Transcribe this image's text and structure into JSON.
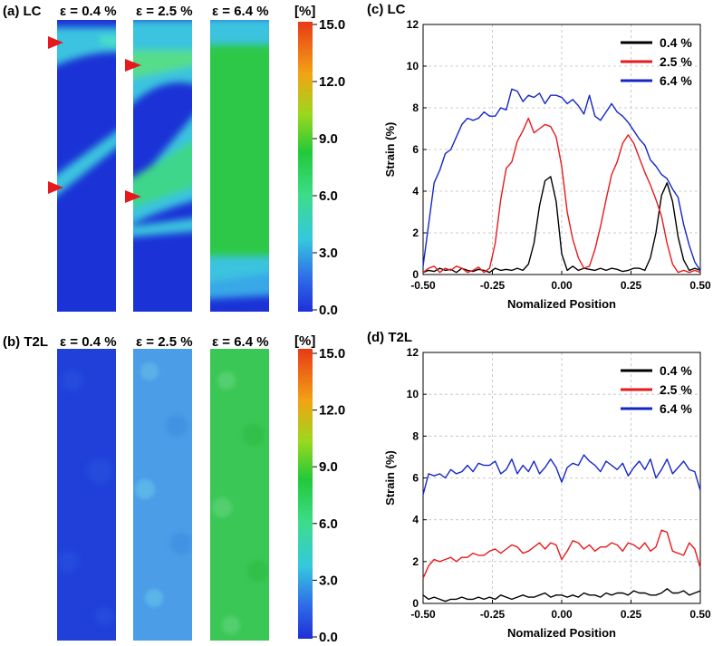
{
  "colors": {
    "strain_0_4": "#000000",
    "strain_2_5": "#e8191c",
    "strain_6_4": "#1526c9",
    "marker": "#e8191c",
    "grid": "#bdbdbd",
    "colorbar_stops": [
      "#1e2fd8",
      "#2f6fe8",
      "#35c8de",
      "#3ddc8a",
      "#22c93a",
      "#9ad81e",
      "#f2a314",
      "#e83a17"
    ]
  },
  "panels": {
    "a": {
      "label": "(a) LC",
      "strains": [
        "ε = 0.4 %",
        "ε = 2.5 %",
        "ε = 6.4 %"
      ]
    },
    "b": {
      "label": "(b) T2L",
      "strains": [
        "ε = 0.4 %",
        "ε = 2.5 %",
        "ε = 6.4 %"
      ]
    }
  },
  "colorbar": {
    "unit": "[%]",
    "ticks": [
      "15.0",
      "12.0",
      "9.0",
      "6.0",
      "3.0",
      "0.0"
    ],
    "range": [
      0,
      15
    ]
  },
  "chart_data": [
    {
      "id": "c",
      "type": "line",
      "title": "(c) LC",
      "xlabel": "Nomalized Position",
      "ylabel": "Strain (%)",
      "xlim": [
        -0.5,
        0.5
      ],
      "ylim": [
        0,
        12
      ],
      "xticks": [
        "-0.50",
        "-0.25",
        "0.00",
        "0.25",
        "0.50"
      ],
      "yticks": [
        "0",
        "2",
        "4",
        "6",
        "8",
        "10",
        "12"
      ],
      "grid": true,
      "legend_position": "top-right",
      "x": [
        -0.5,
        -0.48,
        -0.46,
        -0.44,
        -0.42,
        -0.4,
        -0.38,
        -0.36,
        -0.34,
        -0.32,
        -0.3,
        -0.28,
        -0.26,
        -0.24,
        -0.22,
        -0.2,
        -0.18,
        -0.16,
        -0.14,
        -0.12,
        -0.1,
        -0.08,
        -0.06,
        -0.04,
        -0.02,
        0,
        0.02,
        0.04,
        0.06,
        0.08,
        0.1,
        0.12,
        0.14,
        0.16,
        0.18,
        0.2,
        0.22,
        0.24,
        0.26,
        0.28,
        0.3,
        0.32,
        0.34,
        0.36,
        0.38,
        0.4,
        0.42,
        0.44,
        0.46,
        0.48,
        0.5
      ],
      "series": [
        {
          "name": "0.4 %",
          "values": [
            0.1,
            0.2,
            0.15,
            0.3,
            0.2,
            0.25,
            0.1,
            0.3,
            0.2,
            0.15,
            0.25,
            0.2,
            0.1,
            0.3,
            0.2,
            0.25,
            0.2,
            0.3,
            0.2,
            0.5,
            1.5,
            3.3,
            4.5,
            4.7,
            3.5,
            1.0,
            0.2,
            0.4,
            0.2,
            0.3,
            0.25,
            0.2,
            0.3,
            0.2,
            0.3,
            0.25,
            0.15,
            0.2,
            0.3,
            0.3,
            0.2,
            0.8,
            2.0,
            3.8,
            4.4,
            3.5,
            1.8,
            0.7,
            0.2,
            0.3,
            0.2
          ]
        },
        {
          "name": "2.5 %",
          "values": [
            0.1,
            0.3,
            0.4,
            0.1,
            0.3,
            0.2,
            0.4,
            0.3,
            0.1,
            0.2,
            0.35,
            0.1,
            0.3,
            1.5,
            3.6,
            5.1,
            5.4,
            6.4,
            6.9,
            7.5,
            6.8,
            7.0,
            7.2,
            7.1,
            6.6,
            5.2,
            3.0,
            1.7,
            0.8,
            0.3,
            0.4,
            1.2,
            2.3,
            3.6,
            4.8,
            5.4,
            6.3,
            6.7,
            6.3,
            5.6,
            4.9,
            4.3,
            3.6,
            2.8,
            1.5,
            0.5,
            0.1,
            0.2,
            0.1,
            0.2,
            0.1
          ]
        },
        {
          "name": "6.4 %",
          "values": [
            0.4,
            2.4,
            4.4,
            5.0,
            5.8,
            6.0,
            6.6,
            7.2,
            7.5,
            7.4,
            7.5,
            7.8,
            7.6,
            7.6,
            8.0,
            7.9,
            8.9,
            8.8,
            8.3,
            8.6,
            8.5,
            8.7,
            8.2,
            8.6,
            8.6,
            8.5,
            8.2,
            8.4,
            8.1,
            7.7,
            8.6,
            7.6,
            7.4,
            7.8,
            8.2,
            7.8,
            7.6,
            7.3,
            6.9,
            6.5,
            6.2,
            5.5,
            5.2,
            4.8,
            4.6,
            4.1,
            3.7,
            2.4,
            1.4,
            0.6,
            0.2
          ]
        }
      ]
    },
    {
      "id": "d",
      "type": "line",
      "title": "(d) T2L",
      "xlabel": "Nomalized Position",
      "ylabel": "Strain (%)",
      "xlim": [
        -0.5,
        0.5
      ],
      "ylim": [
        0,
        12
      ],
      "xticks": [
        "-0.50",
        "-0.25",
        "0.00",
        "0.25",
        "0.50"
      ],
      "yticks": [
        "0",
        "2",
        "4",
        "6",
        "8",
        "10",
        "12"
      ],
      "grid": true,
      "legend_position": "top-right",
      "x": [
        -0.5,
        -0.48,
        -0.46,
        -0.44,
        -0.42,
        -0.4,
        -0.38,
        -0.36,
        -0.34,
        -0.32,
        -0.3,
        -0.28,
        -0.26,
        -0.24,
        -0.22,
        -0.2,
        -0.18,
        -0.16,
        -0.14,
        -0.12,
        -0.1,
        -0.08,
        -0.06,
        -0.04,
        -0.02,
        0,
        0.02,
        0.04,
        0.06,
        0.08,
        0.1,
        0.12,
        0.14,
        0.16,
        0.18,
        0.2,
        0.22,
        0.24,
        0.26,
        0.28,
        0.3,
        0.32,
        0.34,
        0.36,
        0.38,
        0.4,
        0.42,
        0.44,
        0.46,
        0.48,
        0.5
      ],
      "series": [
        {
          "name": "0.4 %",
          "values": [
            0.4,
            0.2,
            0.3,
            0.2,
            0.1,
            0.2,
            0.2,
            0.3,
            0.2,
            0.2,
            0.3,
            0.2,
            0.3,
            0.2,
            0.4,
            0.3,
            0.2,
            0.3,
            0.4,
            0.3,
            0.3,
            0.4,
            0.5,
            0.3,
            0.4,
            0.4,
            0.3,
            0.4,
            0.3,
            0.5,
            0.4,
            0.4,
            0.3,
            0.5,
            0.4,
            0.5,
            0.5,
            0.4,
            0.6,
            0.5,
            0.5,
            0.4,
            0.4,
            0.5,
            0.7,
            0.5,
            0.5,
            0.6,
            0.4,
            0.5,
            0.6
          ]
        },
        {
          "name": "2.5 %",
          "values": [
            1.2,
            1.8,
            2.1,
            2.0,
            2.1,
            2.2,
            2.0,
            2.2,
            2.2,
            2.4,
            2.3,
            2.3,
            2.5,
            2.6,
            2.4,
            2.6,
            2.8,
            2.7,
            2.4,
            2.5,
            2.7,
            2.9,
            2.6,
            2.9,
            2.8,
            2.1,
            2.5,
            3.0,
            2.9,
            2.6,
            2.8,
            2.5,
            2.7,
            2.7,
            2.9,
            2.8,
            2.5,
            2.9,
            2.8,
            2.6,
            2.9,
            2.5,
            2.7,
            3.5,
            3.4,
            2.5,
            2.4,
            2.3,
            2.9,
            2.6,
            1.7
          ]
        },
        {
          "name": "6.4 %",
          "values": [
            5.2,
            6.2,
            6.1,
            6.2,
            6.0,
            6.4,
            6.2,
            6.3,
            6.6,
            6.3,
            6.7,
            6.6,
            6.6,
            6.8,
            6.2,
            6.4,
            6.9,
            6.2,
            6.6,
            6.3,
            6.8,
            6.2,
            6.5,
            6.9,
            6.5,
            5.8,
            6.5,
            6.7,
            6.6,
            7.1,
            6.8,
            6.6,
            6.3,
            6.8,
            6.6,
            6.4,
            6.7,
            6.1,
            6.5,
            6.8,
            6.4,
            6.9,
            6.0,
            6.4,
            6.9,
            6.2,
            6.5,
            6.8,
            6.4,
            6.3,
            5.4
          ]
        }
      ]
    }
  ]
}
